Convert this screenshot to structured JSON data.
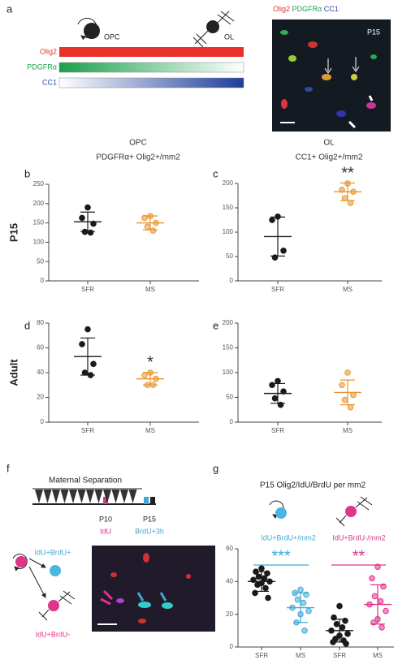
{
  "panel_a": {
    "letter": "a",
    "opc": "OPC",
    "ol": "OL",
    "bars": [
      "Olig2",
      "PDGFRα",
      "CC1"
    ],
    "image_labels": [
      "Olig2",
      "PDGFRα",
      "CC1"
    ],
    "image_age": "P15"
  },
  "headers": {
    "opc": "OPC",
    "opc_measure": "PDGFRα+ Olig2+/mm2",
    "ol": "OL",
    "ol_measure": "CC1+ Olig2+/mm2"
  },
  "panel_f": {
    "letter": "f",
    "protocol": "Maternal Separation",
    "p10": "P10",
    "idu": "IdU",
    "p15": "P15",
    "brdu": "BrdU+3h",
    "pos": "IdU+BrdU+",
    "neg": "IdU+BrdU-"
  },
  "panel_g": {
    "letter": "g",
    "title": "P15 Olig2/IdU/BrdU per mm2",
    "group_labels": [
      "IdU+BrdU+/mm2",
      "IdU+BrdU-/mm2"
    ]
  },
  "chart_data": [
    {
      "type": "strip",
      "panel": "b",
      "row_label": "P15",
      "categories": [
        "SFR",
        "MS"
      ],
      "ylim": [
        0,
        250
      ],
      "yticks": [
        0,
        50,
        100,
        150,
        200,
        250
      ],
      "groups": [
        {
          "color": "#1a1a1a",
          "values": [
            190,
            163,
            148,
            127,
            125
          ],
          "mean": 153,
          "sd": 25
        },
        {
          "color": "#e8962e",
          "values": [
            168,
            163,
            150,
            140,
            130
          ],
          "mean": 150,
          "sd": 18
        }
      ]
    },
    {
      "type": "strip",
      "panel": "c",
      "categories": [
        "SFR",
        "MS"
      ],
      "ylim": [
        0,
        200
      ],
      "yticks": [
        0,
        50,
        100,
        150,
        200
      ],
      "annotation": "**",
      "groups": [
        {
          "color": "#1a1a1a",
          "values": [
            132,
            125,
            62,
            48
          ],
          "mean": 91,
          "sd": 40
        },
        {
          "color": "#e8962e",
          "values": [
            200,
            187,
            183,
            170,
            160
          ],
          "mean": 183,
          "sd": 18
        }
      ]
    },
    {
      "type": "strip",
      "panel": "d",
      "row_label": "Adult",
      "categories": [
        "SFR",
        "MS"
      ],
      "ylim": [
        0,
        80
      ],
      "yticks": [
        0,
        20,
        40,
        60,
        80
      ],
      "annotation": "*",
      "groups": [
        {
          "color": "#1a1a1a",
          "values": [
            75,
            63,
            47,
            40,
            38
          ],
          "mean": 53,
          "sd": 15
        },
        {
          "color": "#e8962e",
          "values": [
            40,
            38,
            35,
            30,
            30
          ],
          "mean": 35,
          "sd": 5
        }
      ]
    },
    {
      "type": "strip",
      "panel": "e",
      "categories": [
        "SFR",
        "MS"
      ],
      "ylim": [
        0,
        200
      ],
      "yticks": [
        0,
        50,
        100,
        150,
        200
      ],
      "groups": [
        {
          "color": "#1a1a1a",
          "values": [
            83,
            75,
            62,
            48,
            35
          ],
          "mean": 58,
          "sd": 20
        },
        {
          "color": "#e8962e",
          "values": [
            100,
            75,
            55,
            45,
            30
          ],
          "mean": 60,
          "sd": 25
        }
      ]
    },
    {
      "type": "strip",
      "categories": [
        "SFR",
        "MS",
        "SFR",
        "MS"
      ],
      "ylim": [
        0,
        60
      ],
      "yticks": [
        0,
        20,
        40,
        60
      ],
      "annotations": [
        {
          "text": "***",
          "color": "#3fa9d6"
        },
        {
          "text": "**",
          "color": "#e0338a"
        }
      ],
      "groups": [
        {
          "color": "#1a1a1a",
          "values": [
            48,
            46,
            45,
            43,
            42,
            41,
            40,
            39,
            38,
            36,
            33,
            30
          ],
          "mean": 40,
          "sd": 6
        },
        {
          "color": "#3fa9d6",
          "values": [
            35,
            33,
            32,
            29,
            27,
            24,
            22,
            20,
            15,
            10
          ],
          "mean": 24,
          "sd": 9
        },
        {
          "color": "#1a1a1a",
          "values": [
            25,
            18,
            16,
            14,
            12,
            10,
            8,
            7,
            5,
            4,
            3,
            2
          ],
          "mean": 10,
          "sd": 7
        },
        {
          "color": "#e0338a",
          "values": [
            49,
            42,
            37,
            31,
            28,
            26,
            22,
            17,
            15,
            12
          ],
          "mean": 26,
          "sd": 12
        }
      ]
    }
  ]
}
